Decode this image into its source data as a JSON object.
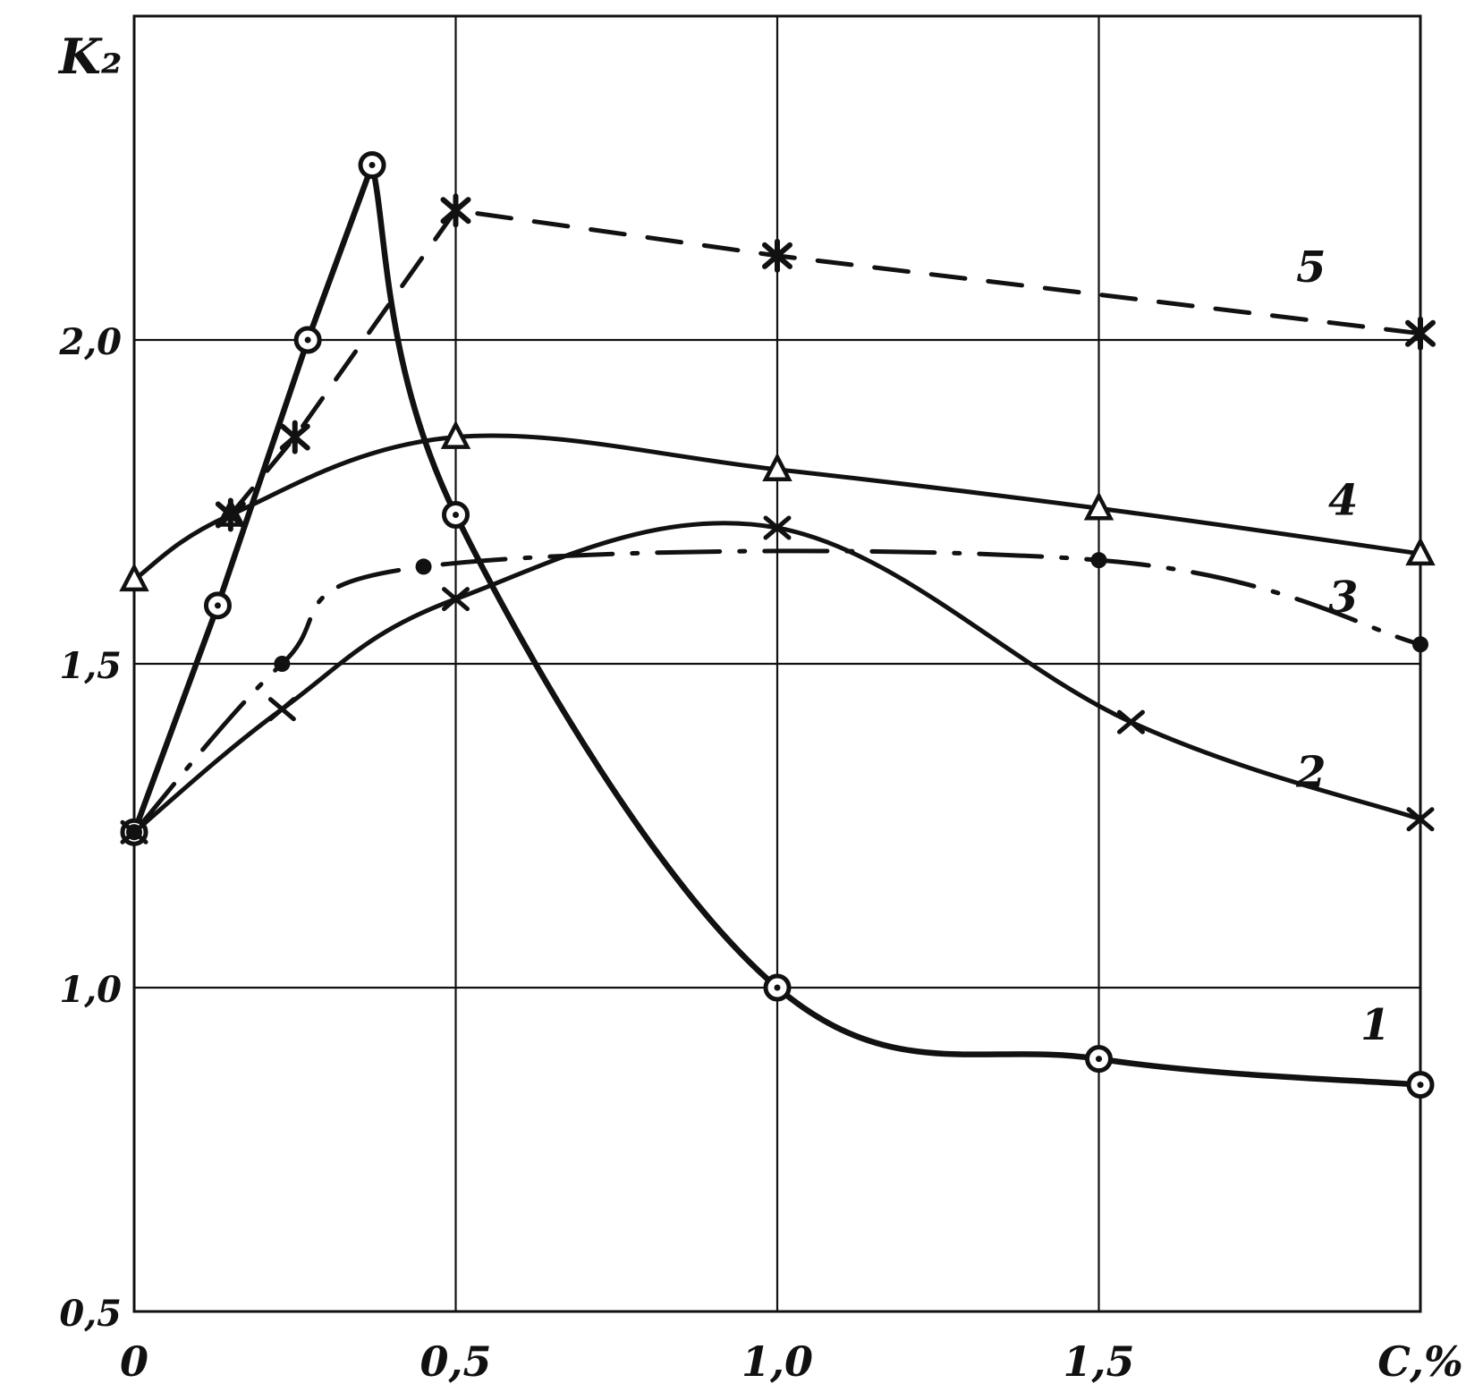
{
  "chart_data": {
    "type": "line",
    "title": "",
    "ylabel": "K₂",
    "xlabel": "C,%",
    "xlim": [
      0,
      2
    ],
    "ylim": [
      0.5,
      2.5
    ],
    "x_ticks": [
      {
        "value": 0,
        "label": "0"
      },
      {
        "value": 0.5,
        "label": "0,5"
      },
      {
        "value": 1.0,
        "label": "1,0"
      },
      {
        "value": 1.5,
        "label": "1,5"
      },
      {
        "value": 2.0,
        "label": "C,%"
      }
    ],
    "y_ticks": [
      {
        "value": 0.5,
        "label": "0,5"
      },
      {
        "value": 1.0,
        "label": "1,0"
      },
      {
        "value": 1.5,
        "label": "1,5"
      },
      {
        "value": 2.0,
        "label": "2,0"
      }
    ],
    "grid": true,
    "series": [
      {
        "name": "1",
        "marker": "circle-dot",
        "line": "solid",
        "points": [
          [
            0,
            1.24
          ],
          [
            0.13,
            1.59
          ],
          [
            0.27,
            2.0
          ],
          [
            0.37,
            2.27
          ],
          [
            0.5,
            1.73
          ],
          [
            1.0,
            1.0
          ],
          [
            1.5,
            0.89
          ],
          [
            2.0,
            0.85
          ]
        ]
      },
      {
        "name": "2",
        "marker": "x",
        "line": "solid",
        "points": [
          [
            0,
            1.24
          ],
          [
            0.23,
            1.43
          ],
          [
            0.5,
            1.6
          ],
          [
            1.0,
            1.71
          ],
          [
            1.55,
            1.41
          ],
          [
            2.0,
            1.26
          ]
        ]
      },
      {
        "name": "3",
        "marker": "dot",
        "line": "dash-dot",
        "points": [
          [
            0,
            1.24
          ],
          [
            0.23,
            1.5
          ],
          [
            0.45,
            1.65
          ],
          [
            1.5,
            1.66
          ],
          [
            2.0,
            1.53
          ]
        ]
      },
      {
        "name": "4",
        "marker": "triangle",
        "line": "solid",
        "points": [
          [
            0,
            1.63
          ],
          [
            0.15,
            1.73
          ],
          [
            0.5,
            1.85
          ],
          [
            1.0,
            1.8
          ],
          [
            1.5,
            1.74
          ],
          [
            2.0,
            1.67
          ]
        ]
      },
      {
        "name": "5",
        "marker": "asterisk",
        "line": "dashed",
        "points": [
          [
            0.15,
            1.73
          ],
          [
            0.25,
            1.85
          ],
          [
            0.5,
            2.2
          ],
          [
            1.0,
            2.13
          ],
          [
            2.0,
            2.01
          ]
        ]
      }
    ]
  }
}
